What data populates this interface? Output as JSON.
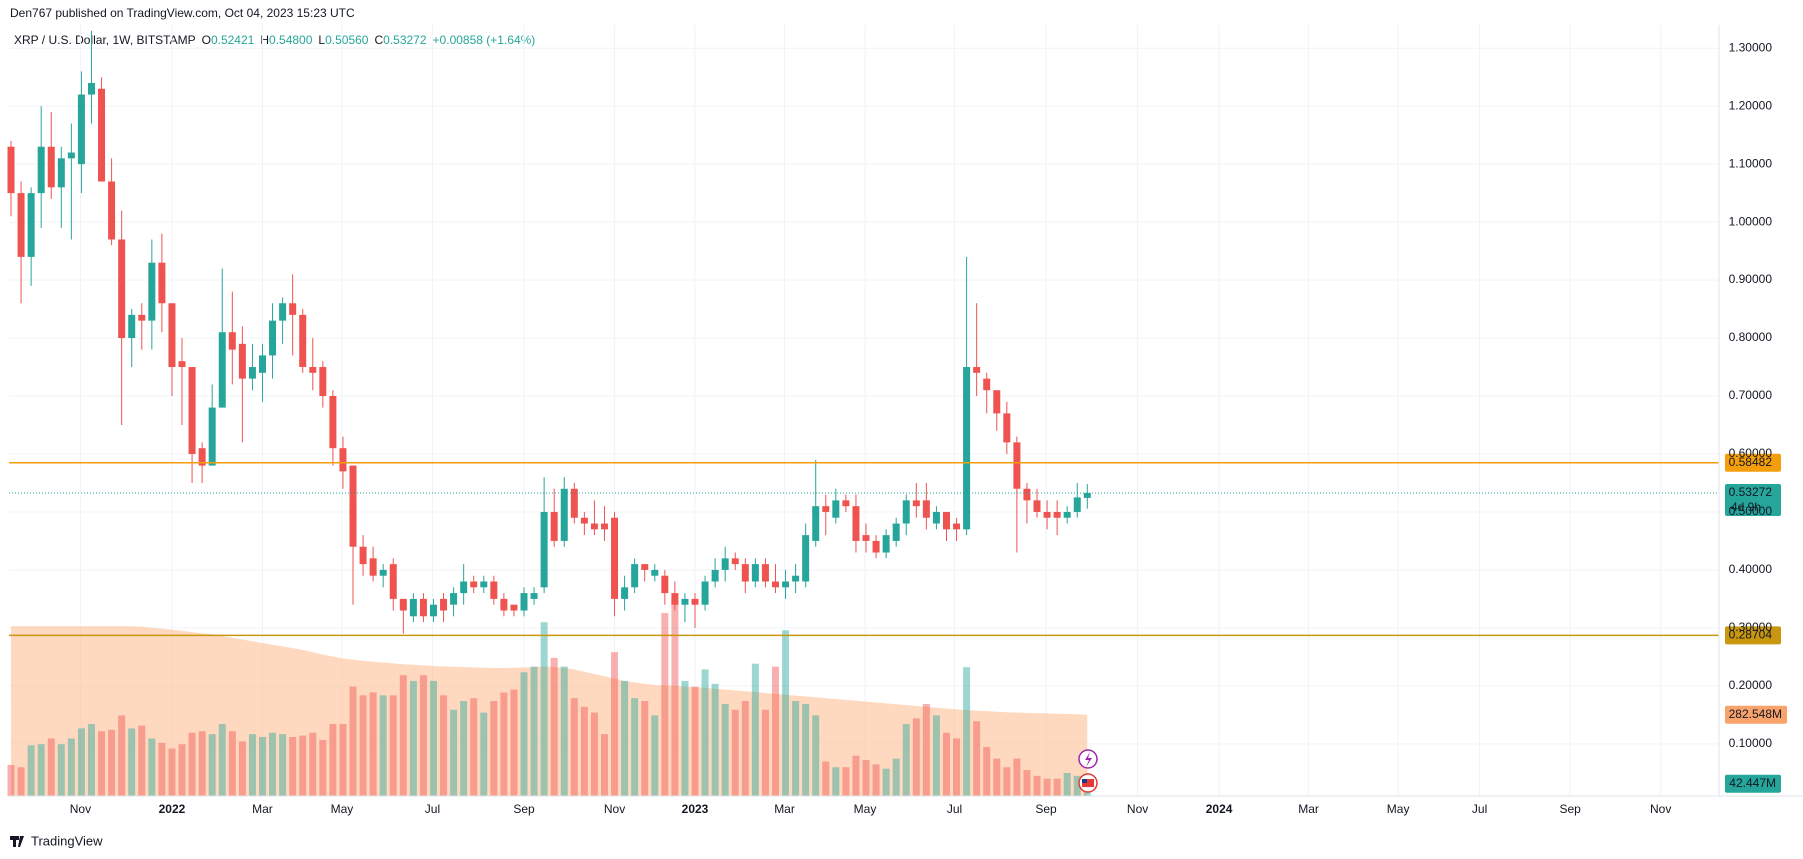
{
  "chart_data": {
    "type": "candlestick",
    "publisher": "Den767 published on TradingView.com, Oct 04, 2023 15:23 UTC",
    "title": "XRP / U.S. Dollar, 1W, BITSTAMP",
    "ohlc_legend": [
      {
        "label": "O",
        "value": "0.52421"
      },
      {
        "label": "H",
        "value": "0.54800"
      },
      {
        "label": "L",
        "value": "0.50560"
      },
      {
        "label": "C",
        "value": "0.53272"
      }
    ],
    "change": "+0.00858 (+1.64%)",
    "footer": "TradingView",
    "up_color": "#26a69a",
    "down_color": "#ef5350",
    "volume_ma_color": "#ffb98a",
    "grid": true,
    "xlim": [
      -0.2,
      169.8
    ],
    "xticks": [
      {
        "value": 6.9,
        "label": "Nov"
      },
      {
        "value": 16,
        "label": "2022"
      },
      {
        "value": 25,
        "label": "Mar"
      },
      {
        "value": 32.9,
        "label": "May"
      },
      {
        "value": 41.9,
        "label": "Jul"
      },
      {
        "value": 51,
        "label": "Sep"
      },
      {
        "value": 60,
        "label": "Nov"
      },
      {
        "value": 68,
        "label": "2023"
      },
      {
        "value": 76.9,
        "label": "Mar"
      },
      {
        "value": 84.9,
        "label": "May"
      },
      {
        "value": 93.8,
        "label": "Jul"
      },
      {
        "value": 102.9,
        "label": "Sep"
      },
      {
        "value": 112,
        "label": "Nov"
      },
      {
        "value": 120.1,
        "label": "2024"
      },
      {
        "value": 129,
        "label": "Mar"
      },
      {
        "value": 137.9,
        "label": "May"
      },
      {
        "value": 146,
        "label": "Jul"
      },
      {
        "value": 155,
        "label": "Sep"
      },
      {
        "value": 164,
        "label": "Nov"
      }
    ],
    "ylim": [
      0.01,
      1.34
    ],
    "yticks": [
      {
        "value": 0.1,
        "label": "0.10000"
      },
      {
        "value": 0.2,
        "label": "0.20000"
      },
      {
        "value": 0.3,
        "label": "0.30000"
      },
      {
        "value": 0.4,
        "label": "0.40000"
      },
      {
        "value": 0.5,
        "label": "0.50000"
      },
      {
        "value": 0.6,
        "label": "0.60000"
      },
      {
        "value": 0.7,
        "label": "0.70000"
      },
      {
        "value": 0.8,
        "label": "0.80000"
      },
      {
        "value": 0.9,
        "label": "0.90000"
      },
      {
        "value": 1.0,
        "label": "1.00000"
      },
      {
        "value": 1.1,
        "label": "1.10000"
      },
      {
        "value": 1.2,
        "label": "1.20000"
      },
      {
        "value": 1.3,
        "label": "1.30000"
      }
    ],
    "y2lim": [
      0,
      2680
    ],
    "open": [
      1.13,
      1.05,
      0.94,
      1.05,
      1.13,
      1.06,
      1.11,
      1.1,
      1.22,
      1.23,
      1.07,
      0.97,
      0.8,
      0.84,
      0.83,
      0.93,
      0.86,
      0.76,
      0.75,
      0.61,
      0.58,
      0.68,
      0.81,
      0.79,
      0.73,
      0.74,
      0.77,
      0.83,
      0.86,
      0.84,
      0.75,
      0.75,
      0.7,
      0.61,
      0.58,
      0.44,
      0.42,
      0.39,
      0.41,
      0.35,
      0.32,
      0.35,
      0.32,
      0.35,
      0.34,
      0.36,
      0.38,
      0.37,
      0.38,
      0.35,
      0.34,
      0.33,
      0.35,
      0.37,
      0.5,
      0.45,
      0.54,
      0.49,
      0.48,
      0.48,
      0.49,
      0.35,
      0.37,
      0.41,
      0.39,
      0.39,
      0.36,
      0.34,
      0.35,
      0.34,
      0.38,
      0.4,
      0.42,
      0.41,
      0.38,
      0.41,
      0.38,
      0.37,
      0.38,
      0.38,
      0.45,
      0.51,
      0.49,
      0.52,
      0.51,
      0.46,
      0.45,
      0.43,
      0.45,
      0.48,
      0.52,
      0.52,
      0.48,
      0.5,
      0.48,
      0.47,
      0.75,
      0.73,
      0.71,
      0.67,
      0.62,
      0.54,
      0.52,
      0.5,
      0.5,
      0.49,
      0.5,
      0.52421
    ],
    "high": [
      1.14,
      1.07,
      1.06,
      1.2,
      1.19,
      1.13,
      1.17,
      1.26,
      1.33,
      1.25,
      1.11,
      1.02,
      0.85,
      0.86,
      0.97,
      0.98,
      0.86,
      0.8,
      0.75,
      0.62,
      0.72,
      0.92,
      0.88,
      0.82,
      0.79,
      0.79,
      0.86,
      0.87,
      0.91,
      0.85,
      0.8,
      0.76,
      0.71,
      0.63,
      0.58,
      0.46,
      0.44,
      0.41,
      0.42,
      0.35,
      0.36,
      0.36,
      0.35,
      0.36,
      0.37,
      0.41,
      0.39,
      0.39,
      0.39,
      0.36,
      0.34,
      0.37,
      0.37,
      0.56,
      0.54,
      0.56,
      0.55,
      0.5,
      0.52,
      0.51,
      0.5,
      0.39,
      0.42,
      0.41,
      0.41,
      0.4,
      0.38,
      0.36,
      0.36,
      0.39,
      0.42,
      0.44,
      0.43,
      0.42,
      0.42,
      0.42,
      0.41,
      0.4,
      0.41,
      0.48,
      0.59,
      0.53,
      0.54,
      0.53,
      0.53,
      0.48,
      0.46,
      0.47,
      0.49,
      0.53,
      0.55,
      0.55,
      0.51,
      0.5,
      0.49,
      0.94,
      0.86,
      0.74,
      0.71,
      0.69,
      0.63,
      0.55,
      0.54,
      0.52,
      0.52,
      0.51,
      0.55,
      0.548
    ],
    "low": [
      1.01,
      0.86,
      0.89,
      0.99,
      1.04,
      0.99,
      0.97,
      1.05,
      1.17,
      1.07,
      0.96,
      0.65,
      0.75,
      0.78,
      0.78,
      0.81,
      0.7,
      0.65,
      0.55,
      0.55,
      0.58,
      0.68,
      0.72,
      0.62,
      0.71,
      0.69,
      0.73,
      0.79,
      0.77,
      0.74,
      0.71,
      0.68,
      0.58,
      0.54,
      0.34,
      0.39,
      0.38,
      0.37,
      0.33,
      0.29,
      0.31,
      0.31,
      0.31,
      0.31,
      0.32,
      0.34,
      0.36,
      0.36,
      0.34,
      0.32,
      0.32,
      0.32,
      0.34,
      0.36,
      0.44,
      0.44,
      0.48,
      0.46,
      0.46,
      0.45,
      0.32,
      0.33,
      0.36,
      0.38,
      0.38,
      0.34,
      0.33,
      0.31,
      0.3,
      0.33,
      0.37,
      0.38,
      0.4,
      0.36,
      0.37,
      0.37,
      0.36,
      0.35,
      0.36,
      0.37,
      0.44,
      0.46,
      0.48,
      0.5,
      0.43,
      0.43,
      0.42,
      0.42,
      0.44,
      0.46,
      0.49,
      0.47,
      0.47,
      0.45,
      0.45,
      0.46,
      0.7,
      0.67,
      0.64,
      0.6,
      0.43,
      0.48,
      0.49,
      0.47,
      0.46,
      0.48,
      0.49,
      0.5056
    ],
    "close": [
      1.05,
      0.94,
      1.05,
      1.13,
      1.06,
      1.11,
      1.12,
      1.22,
      1.24,
      1.07,
      0.97,
      0.8,
      0.84,
      0.83,
      0.93,
      0.86,
      0.75,
      0.75,
      0.6,
      0.58,
      0.68,
      0.81,
      0.78,
      0.73,
      0.75,
      0.77,
      0.83,
      0.86,
      0.84,
      0.75,
      0.74,
      0.7,
      0.61,
      0.57,
      0.44,
      0.41,
      0.39,
      0.4,
      0.35,
      0.33,
      0.35,
      0.32,
      0.34,
      0.33,
      0.36,
      0.38,
      0.37,
      0.38,
      0.35,
      0.33,
      0.33,
      0.36,
      0.36,
      0.5,
      0.45,
      0.54,
      0.49,
      0.48,
      0.47,
      0.47,
      0.35,
      0.37,
      0.41,
      0.4,
      0.4,
      0.36,
      0.34,
      0.35,
      0.34,
      0.38,
      0.4,
      0.42,
      0.41,
      0.38,
      0.41,
      0.38,
      0.37,
      0.38,
      0.39,
      0.46,
      0.51,
      0.5,
      0.52,
      0.51,
      0.45,
      0.45,
      0.43,
      0.46,
      0.48,
      0.52,
      0.51,
      0.49,
      0.5,
      0.47,
      0.47,
      0.75,
      0.74,
      0.71,
      0.67,
      0.62,
      0.54,
      0.52,
      0.5,
      0.49,
      0.49,
      0.5,
      0.525,
      0.53272
    ],
    "volume": [
      108,
      100,
      176,
      180,
      200,
      180,
      200,
      235,
      250,
      225,
      230,
      280,
      235,
      245,
      200,
      185,
      165,
      180,
      220,
      225,
      215,
      250,
      225,
      190,
      215,
      205,
      220,
      215,
      205,
      210,
      220,
      195,
      250,
      250,
      380,
      350,
      360,
      350,
      350,
      420,
      400,
      420,
      400,
      350,
      300,
      330,
      340,
      290,
      330,
      360,
      370,
      430,
      450,
      604,
      480,
      450,
      340,
      310,
      290,
      215,
      500,
      400,
      340,
      330,
      280,
      636,
      680,
      400,
      380,
      440,
      390,
      320,
      300,
      330,
      460,
      300,
      450,
      576,
      330,
      320,
      280,
      120,
      100,
      100,
      140,
      125,
      110,
      95,
      130,
      250,
      270,
      320,
      280,
      220,
      200,
      448,
      260,
      170,
      130,
      100,
      130,
      90,
      70,
      60,
      60,
      80,
      70,
      42.447
    ],
    "volume_label": "42.447M",
    "volume_ma": [
      590,
      590,
      590,
      590,
      590,
      590,
      590,
      590,
      590,
      590,
      590,
      590,
      590,
      588,
      585,
      582,
      578,
      574,
      570,
      566,
      562,
      556,
      550,
      544,
      538,
      532,
      526,
      520,
      514,
      508,
      500,
      492,
      485,
      478,
      474,
      470,
      467,
      464,
      461,
      458,
      456,
      454,
      452,
      450,
      449,
      448,
      447,
      446,
      445,
      445,
      446,
      447,
      448,
      450,
      448,
      445,
      440,
      432,
      424,
      416,
      408,
      400,
      395,
      390,
      386,
      384,
      383,
      380,
      378,
      376,
      373,
      370,
      367,
      364,
      361,
      358,
      355,
      352,
      349,
      346,
      343,
      340,
      337,
      334,
      331,
      328,
      325,
      322,
      319,
      316,
      313,
      310,
      307,
      304,
      301,
      299,
      297,
      295,
      293,
      291,
      290,
      289,
      288,
      287,
      286,
      285,
      284,
      282.548
    ],
    "volume_ma_label": "282.548M",
    "levels": [
      {
        "value": 0.58482,
        "color": "#f59e0b"
      },
      {
        "value": 0.28704,
        "color": "#c8960f"
      }
    ],
    "countdown": "4d 9h"
  }
}
